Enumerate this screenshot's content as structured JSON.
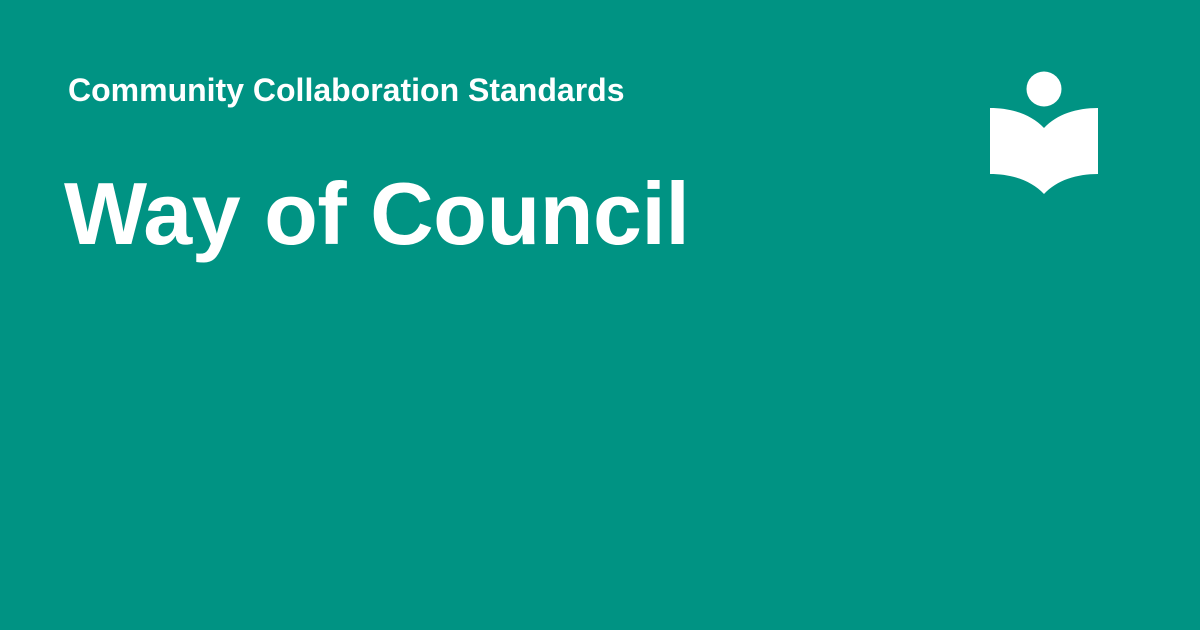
{
  "header": {
    "subtitle": "Community Collaboration Standards",
    "title": "Way of Council"
  },
  "logo": {
    "icon": "reader-book-icon",
    "color": "#ffffff"
  },
  "theme": {
    "background": "#009383",
    "text": "#ffffff"
  }
}
